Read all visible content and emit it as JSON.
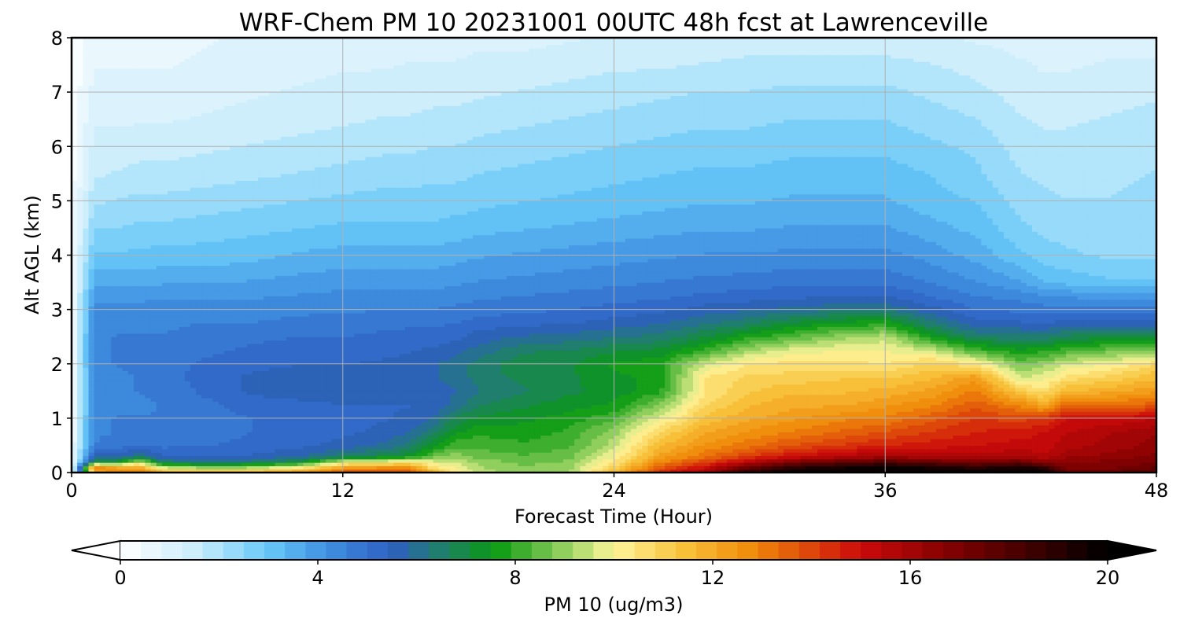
{
  "chart_data": {
    "type": "heatmap",
    "title": "WRF-Chem PM 10  20231001 00UTC 48h fcst at Lawrenceville",
    "xlabel": "Forecast Time (Hour)",
    "ylabel": "Alt AGL (km)",
    "xlim": [
      0,
      48
    ],
    "ylim": [
      0,
      8
    ],
    "x_ticks": [
      "0",
      "12",
      "24",
      "36",
      "48"
    ],
    "y_ticks": [
      "0",
      "1",
      "2",
      "3",
      "4",
      "5",
      "6",
      "7",
      "8"
    ],
    "grid": true,
    "colorbar": {
      "label": "PM 10  (ug/m3)",
      "range": [
        0,
        20
      ],
      "ticks": [
        "0",
        "4",
        "8",
        "12",
        "16",
        "20"
      ],
      "extend": "both",
      "colors": [
        {
          "v": 0,
          "c": "#ffffff"
        },
        {
          "v": 1.5,
          "c": "#cdeefc"
        },
        {
          "v": 3,
          "c": "#66c8f8"
        },
        {
          "v": 4.2,
          "c": "#3f8fe0"
        },
        {
          "v": 5.5,
          "c": "#2e5fc2"
        },
        {
          "v": 6.5,
          "c": "#1f7f6a"
        },
        {
          "v": 7.6,
          "c": "#0a9a12"
        },
        {
          "v": 9.2,
          "c": "#a8d86a"
        },
        {
          "v": 10,
          "c": "#fff59a"
        },
        {
          "v": 11.4,
          "c": "#f7c23a"
        },
        {
          "v": 12.8,
          "c": "#f08a0a"
        },
        {
          "v": 15,
          "c": "#cc0a0a"
        },
        {
          "v": 17,
          "c": "#7a0000"
        },
        {
          "v": 20,
          "c": "#000000"
        }
      ]
    },
    "altitudes_km": [
      0,
      0.1,
      0.2,
      0.3,
      0.5,
      0.75,
      1,
      1.25,
      1.5,
      1.75,
      2,
      2.25,
      2.5,
      2.75,
      3,
      3.25,
      3.5,
      4,
      4.5,
      5,
      5.5,
      6,
      6.5,
      7,
      7.5,
      8
    ],
    "hours": [
      0,
      1,
      2,
      3,
      4,
      6,
      8,
      10,
      12,
      14,
      15,
      16,
      17,
      18,
      20,
      22,
      24,
      26,
      28,
      30,
      32,
      34,
      36,
      38,
      40,
      42,
      43,
      44,
      46,
      48
    ],
    "profiles": [
      {
        "h": 0,
        "v": [
          0.3,
          0.3,
          0.3,
          0.3,
          0.3,
          0.3,
          0.3,
          0.3,
          0.3,
          0.3,
          0.3,
          0.3,
          0.3,
          0.3,
          0.3,
          0.3,
          0.3,
          0.3,
          0.3,
          0.3,
          0.2,
          0.2,
          0.2,
          0.1,
          0.1,
          0.1
        ]
      },
      {
        "h": 1,
        "v": [
          12,
          13,
          7,
          5.8,
          4.6,
          4.5,
          4.5,
          4.4,
          4.4,
          4.4,
          4.5,
          4.5,
          4.5,
          4.4,
          4.3,
          4.0,
          3.6,
          3.0,
          2.5,
          2.0,
          1.6,
          1.4,
          1.2,
          1.0,
          0.8,
          0.6
        ]
      },
      {
        "h": 2,
        "v": [
          13,
          12,
          7.2,
          5.8,
          4.8,
          4.6,
          4.6,
          4.5,
          4.5,
          4.5,
          4.6,
          4.6,
          4.6,
          4.5,
          4.4,
          4.0,
          3.6,
          3.0,
          2.5,
          2.1,
          1.7,
          1.4,
          1.2,
          1.0,
          0.8,
          0.7
        ]
      },
      {
        "h": 3,
        "v": [
          13,
          12,
          9.5,
          6.2,
          5.0,
          4.7,
          4.6,
          4.5,
          4.6,
          4.6,
          4.7,
          4.6,
          4.6,
          4.5,
          4.4,
          4.0,
          3.6,
          3.0,
          2.6,
          2.2,
          1.8,
          1.5,
          1.2,
          1.0,
          0.8,
          0.7
        ]
      },
      {
        "h": 4,
        "v": [
          12,
          9.5,
          6.5,
          5.5,
          4.9,
          4.7,
          4.6,
          4.6,
          4.7,
          4.8,
          4.8,
          4.7,
          4.6,
          4.5,
          4.4,
          4.1,
          3.7,
          3.1,
          2.6,
          2.2,
          1.8,
          1.5,
          1.2,
          1.0,
          0.8,
          0.7
        ]
      },
      {
        "h": 6,
        "v": [
          12,
          8.8,
          6.2,
          5.4,
          5.0,
          4.8,
          4.8,
          4.9,
          5.1,
          5.2,
          5.1,
          4.9,
          4.8,
          4.6,
          4.4,
          4.1,
          3.7,
          3.1,
          2.7,
          2.3,
          1.9,
          1.6,
          1.3,
          1.1,
          0.9,
          0.8
        ]
      },
      {
        "h": 8,
        "v": [
          12,
          9.0,
          6.4,
          5.5,
          5.1,
          5.0,
          5.0,
          5.2,
          5.5,
          5.5,
          5.3,
          5.1,
          4.9,
          4.6,
          4.4,
          4.1,
          3.8,
          3.2,
          2.8,
          2.4,
          2.0,
          1.7,
          1.4,
          1.2,
          1.0,
          0.9
        ]
      },
      {
        "h": 10,
        "v": [
          12.5,
          10,
          7.0,
          5.8,
          5.3,
          5.1,
          5.1,
          5.3,
          5.6,
          5.6,
          5.4,
          5.2,
          5.0,
          4.7,
          4.5,
          4.2,
          3.9,
          3.4,
          2.9,
          2.5,
          2.1,
          1.8,
          1.5,
          1.3,
          1.1,
          0.9
        ]
      },
      {
        "h": 12,
        "v": [
          14,
          12,
          9.8,
          6.5,
          5.6,
          5.3,
          5.2,
          5.4,
          5.7,
          5.6,
          5.4,
          5.2,
          5.0,
          4.8,
          4.5,
          4.3,
          4.0,
          3.5,
          3.0,
          2.6,
          2.2,
          1.9,
          1.6,
          1.4,
          1.2,
          1.0
        ]
      },
      {
        "h": 14,
        "v": [
          14,
          12.5,
          10.2,
          7.0,
          6.0,
          5.6,
          5.4,
          5.4,
          5.6,
          5.6,
          5.5,
          5.3,
          5.1,
          4.9,
          4.6,
          4.3,
          4.0,
          3.5,
          3.0,
          2.7,
          2.3,
          2.0,
          1.7,
          1.5,
          1.2,
          1.0
        ]
      },
      {
        "h": 15,
        "v": [
          14,
          12.5,
          10.5,
          7.4,
          6.4,
          5.8,
          5.5,
          5.4,
          5.6,
          5.7,
          5.6,
          5.4,
          5.2,
          4.9,
          4.6,
          4.3,
          4.0,
          3.5,
          3.0,
          2.7,
          2.3,
          2.0,
          1.7,
          1.5,
          1.3,
          1.0
        ]
      },
      {
        "h": 16,
        "v": [
          12,
          10.4,
          9.8,
          8.6,
          7.4,
          6.6,
          5.8,
          5.5,
          5.6,
          5.8,
          5.8,
          5.5,
          5.2,
          4.9,
          4.6,
          4.3,
          4.0,
          3.5,
          3.0,
          2.7,
          2.4,
          2.1,
          1.8,
          1.5,
          1.3,
          1.0
        ]
      },
      {
        "h": 17,
        "v": [
          10.2,
          10,
          9.6,
          9.0,
          8.2,
          7.4,
          6.8,
          6.0,
          5.8,
          6.0,
          6.0,
          5.7,
          5.3,
          5.0,
          4.7,
          4.4,
          4.1,
          3.6,
          3.1,
          2.7,
          2.4,
          2.1,
          1.8,
          1.5,
          1.3,
          1.0
        ]
      },
      {
        "h": 18,
        "v": [
          9.4,
          9.2,
          9.0,
          8.6,
          8.2,
          7.8,
          7.2,
          6.6,
          6.2,
          6.4,
          6.4,
          6.0,
          5.6,
          5.2,
          4.8,
          4.5,
          4.2,
          3.7,
          3.2,
          2.8,
          2.5,
          2.2,
          1.9,
          1.6,
          1.4,
          1.1
        ]
      },
      {
        "h": 20,
        "v": [
          9.0,
          8.8,
          8.6,
          8.4,
          8.0,
          7.7,
          7.4,
          7.0,
          6.6,
          6.8,
          7.0,
          6.6,
          5.9,
          5.3,
          4.9,
          4.6,
          4.3,
          3.8,
          3.3,
          2.9,
          2.6,
          2.3,
          2.0,
          1.7,
          1.4,
          1.1
        ]
      },
      {
        "h": 22,
        "v": [
          9.2,
          9.0,
          8.8,
          8.6,
          8.3,
          8.0,
          7.7,
          7.3,
          7.0,
          7.0,
          7.0,
          6.7,
          6.0,
          5.4,
          5.0,
          4.7,
          4.4,
          3.9,
          3.4,
          3.0,
          2.7,
          2.4,
          2.1,
          1.8,
          1.5,
          1.2
        ]
      },
      {
        "h": 24,
        "v": [
          11.6,
          11,
          10.4,
          10,
          9.4,
          9.0,
          8.2,
          7.6,
          7.2,
          7.4,
          7.6,
          7.0,
          6.2,
          5.6,
          5.2,
          4.8,
          4.5,
          4.0,
          3.5,
          3.1,
          2.8,
          2.5,
          2.2,
          1.9,
          1.6,
          1.3
        ]
      },
      {
        "h": 26,
        "v": [
          14.5,
          13.5,
          12.8,
          12.2,
          11.6,
          10.8,
          9.8,
          8.8,
          7.8,
          7.6,
          7.8,
          7.2,
          6.4,
          5.8,
          5.3,
          4.9,
          4.6,
          4.1,
          3.6,
          3.2,
          2.9,
          2.6,
          2.3,
          2.0,
          1.6,
          1.3
        ]
      },
      {
        "h": 28,
        "v": [
          16,
          15,
          14,
          13.2,
          12.6,
          12,
          11.4,
          10.8,
          10.4,
          10.4,
          9.6,
          8.0,
          7.0,
          6.2,
          5.6,
          5.1,
          4.7,
          4.2,
          3.7,
          3.3,
          3.0,
          2.7,
          2.4,
          2.1,
          1.7,
          1.3
        ]
      },
      {
        "h": 30,
        "v": [
          19,
          17.5,
          15.5,
          14.2,
          13.2,
          12.6,
          12.0,
          11.6,
          11.2,
          11.0,
          10.4,
          9.2,
          7.8,
          6.6,
          5.8,
          5.2,
          4.8,
          4.2,
          3.7,
          3.3,
          3.0,
          2.7,
          2.4,
          2.1,
          1.8,
          1.4
        ]
      },
      {
        "h": 32,
        "v": [
          20,
          19,
          17,
          15,
          13.8,
          13.0,
          12.4,
          12.0,
          11.6,
          11.0,
          10.6,
          9.8,
          8.4,
          7.2,
          6.0,
          5.3,
          4.9,
          4.3,
          3.8,
          3.4,
          3.1,
          2.8,
          2.5,
          2.2,
          1.8,
          1.4
        ]
      },
      {
        "h": 34,
        "v": [
          20,
          19.5,
          17.5,
          15.5,
          14.2,
          13.4,
          12.8,
          12.0,
          11.6,
          11.2,
          10.6,
          10.0,
          9.0,
          7.6,
          6.2,
          5.4,
          4.9,
          4.3,
          3.8,
          3.4,
          3.1,
          2.8,
          2.5,
          2.2,
          1.8,
          1.4
        ]
      },
      {
        "h": 36,
        "v": [
          20,
          20,
          18,
          16,
          14.6,
          13.8,
          13.0,
          12.4,
          11.8,
          11.2,
          10.4,
          10.0,
          9.4,
          7.8,
          6.2,
          5.4,
          4.9,
          4.3,
          3.8,
          3.4,
          3.1,
          2.8,
          2.5,
          2.2,
          1.8,
          1.4
        ]
      },
      {
        "h": 38,
        "v": [
          20,
          19.5,
          17.5,
          15.8,
          14.8,
          14.2,
          13.6,
          12.8,
          12.2,
          11.6,
          11.0,
          9.6,
          7.6,
          6.4,
          5.6,
          5.0,
          4.6,
          4.0,
          3.5,
          3.1,
          2.9,
          2.6,
          2.3,
          2.0,
          1.7,
          1.3
        ]
      },
      {
        "h": 40,
        "v": [
          20,
          19,
          17,
          15.6,
          15.0,
          14.6,
          14.2,
          13.6,
          13.0,
          12.4,
          10.4,
          8.2,
          6.6,
          5.6,
          5.0,
          4.6,
          4.2,
          3.6,
          3.2,
          2.9,
          2.6,
          2.4,
          2.1,
          1.8,
          1.5,
          1.2
        ]
      },
      {
        "h": 42,
        "v": [
          20,
          19.5,
          17.5,
          15.8,
          15.2,
          14.8,
          14.0,
          12.8,
          11.2,
          9.6,
          8.6,
          7.6,
          6.4,
          5.5,
          4.9,
          4.4,
          3.8,
          3.0,
          2.6,
          2.3,
          2.1,
          1.9,
          1.7,
          1.5,
          1.3,
          1.1
        ]
      },
      {
        "h": 43,
        "v": [
          20,
          19,
          16.5,
          15.5,
          15.2,
          15.0,
          14.2,
          12.0,
          10.6,
          9.8,
          9.0,
          7.8,
          6.4,
          5.4,
          4.8,
          4.2,
          3.4,
          2.7,
          2.4,
          2.2,
          2.0,
          1.8,
          1.6,
          1.4,
          1.2,
          1.0
        ]
      },
      {
        "h": 44,
        "v": [
          17.5,
          17,
          16.6,
          16.2,
          15.6,
          15.4,
          15.0,
          13.4,
          11.6,
          10.6,
          9.6,
          8.2,
          6.8,
          5.6,
          4.8,
          4.1,
          3.2,
          2.6,
          2.3,
          2.1,
          1.9,
          1.8,
          1.6,
          1.4,
          1.2,
          1.0
        ]
      },
      {
        "h": 46,
        "v": [
          17.5,
          17,
          16.8,
          16.4,
          16.0,
          15.8,
          15.0,
          13.2,
          12.0,
          11.0,
          10.0,
          8.6,
          7.0,
          5.6,
          4.8,
          4.0,
          3.0,
          2.4,
          2.2,
          2.1,
          2.0,
          1.9,
          1.7,
          1.5,
          1.3,
          1.1
        ]
      },
      {
        "h": 48,
        "v": [
          18,
          17.5,
          17,
          16.8,
          16.4,
          16.2,
          15.4,
          13.6,
          12.4,
          11.6,
          10.8,
          8.6,
          7.2,
          5.6,
          4.8,
          4.0,
          3.0,
          2.4,
          2.2,
          2.2,
          2.1,
          2.0,
          1.8,
          1.6,
          1.3,
          1.1
        ]
      }
    ]
  }
}
